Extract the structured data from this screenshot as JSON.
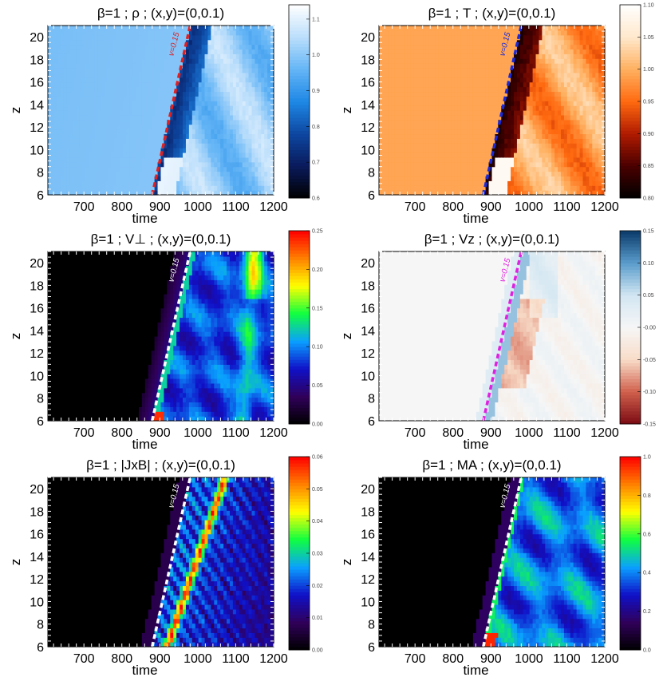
{
  "colormaps": {
    "blues": [
      "#000000",
      "#0a1a5c",
      "#0d47a1",
      "#1e88e5",
      "#64b5f6",
      "#bbdefb",
      "#ffffff"
    ],
    "heat": [
      "#000000",
      "#4a0000",
      "#b01a00",
      "#ff6a10",
      "#ffb060",
      "#ffe8cc",
      "#ffffff"
    ],
    "rainbow": [
      "#000000",
      "#30005a",
      "#1010c8",
      "#0aa0ff",
      "#10ff40",
      "#ffff00",
      "#ff8000",
      "#ff0000"
    ],
    "diverging": [
      "#7a0a12",
      "#d0604c",
      "#f8dcc8",
      "#f6f6f6",
      "#d2e6f2",
      "#5a9ccc",
      "#0a3a6a"
    ]
  },
  "chart_data": [
    {
      "type": "heatmap",
      "title": "β=1 ; ρ ; (x,y)=(0,0.1)",
      "xlabel": "time",
      "ylabel": "z",
      "xlim": [
        605,
        1200
      ],
      "ylim": [
        6,
        21
      ],
      "xticks": [
        "700",
        "800",
        "900",
        "1000",
        "1100",
        "1200"
      ],
      "yticks": [
        "6",
        "8",
        "10",
        "12",
        "14",
        "16",
        "18",
        "20"
      ],
      "colormap": "blues",
      "colorbar": {
        "min": 0.6,
        "max": 1.14,
        "labels": [
          "1.1",
          "1.0",
          "0.9",
          "0.8",
          "0.7",
          "0.6"
        ]
      },
      "line_label": "v=0.15",
      "line_color": "#e02020",
      "front": {
        "t0": 880,
        "v": 0.15
      },
      "field": "rho"
    },
    {
      "type": "heatmap",
      "title": "β=1 ; T ; (x,y)=(0,0.1)",
      "xlabel": "time",
      "ylabel": "z",
      "xlim": [
        605,
        1200
      ],
      "ylim": [
        6,
        21
      ],
      "xticks": [
        "700",
        "800",
        "900",
        "1000",
        "1100",
        "1200"
      ],
      "yticks": [
        "6",
        "8",
        "10",
        "12",
        "14",
        "16",
        "18",
        "20"
      ],
      "colormap": "heat",
      "colorbar": {
        "min": 0.8,
        "max": 1.1,
        "labels": [
          "1.10",
          "1.05",
          "1.00",
          "0.95",
          "0.90",
          "0.85",
          "0.80"
        ]
      },
      "line_label": "v=0.15",
      "line_color": "#1a2ad8",
      "front": {
        "t0": 880,
        "v": 0.15
      },
      "field": "T"
    },
    {
      "type": "heatmap",
      "title": "β=1 ; V⊥ ; (x,y)=(0,0.1)",
      "xlabel": "time",
      "ylabel": "z",
      "xlim": [
        605,
        1200
      ],
      "ylim": [
        6,
        21
      ],
      "xticks": [
        "700",
        "800",
        "900",
        "1000",
        "1100",
        "1200"
      ],
      "yticks": [
        "6",
        "8",
        "10",
        "12",
        "14",
        "16",
        "18",
        "20"
      ],
      "colormap": "rainbow",
      "colorbar": {
        "min": 0.0,
        "max": 0.25,
        "labels": [
          "0.25",
          "0.20",
          "0.15",
          "0.10",
          "0.05",
          "0.00"
        ]
      },
      "line_label": "v=0.15",
      "line_color": "#ffffff",
      "front": {
        "t0": 880,
        "v": 0.15
      },
      "field": "vperp"
    },
    {
      "type": "heatmap",
      "title": "β=1 ; Vz ; (x,y)=(0,0.1)",
      "xlabel": "time",
      "ylabel": "z",
      "xlim": [
        605,
        1200
      ],
      "ylim": [
        6,
        21
      ],
      "xticks": [
        "700",
        "800",
        "900",
        "1000",
        "1100",
        "1200"
      ],
      "yticks": [
        "6",
        "8",
        "10",
        "12",
        "14",
        "16",
        "18",
        "20"
      ],
      "colormap": "diverging",
      "colorbar": {
        "min": -0.15,
        "max": 0.15,
        "labels": [
          "0.15",
          "0.10",
          "0.05",
          "-0.00",
          "-0.05",
          "-0.10",
          "-0.15"
        ]
      },
      "line_label": "v=0.15",
      "line_color": "#e020e0",
      "front": {
        "t0": 880,
        "v": 0.15
      },
      "field": "vz"
    },
    {
      "type": "heatmap",
      "title": "β=1 ; |JxB| ; (x,y)=(0,0.1)",
      "xlabel": "time",
      "ylabel": "z",
      "xlim": [
        605,
        1200
      ],
      "ylim": [
        6,
        21
      ],
      "xticks": [
        "700",
        "800",
        "900",
        "1000",
        "1100",
        "1200"
      ],
      "yticks": [
        "6",
        "8",
        "10",
        "12",
        "14",
        "16",
        "18",
        "20"
      ],
      "colormap": "rainbow",
      "colorbar": {
        "min": 0.0,
        "max": 0.06,
        "labels": [
          "0.06",
          "0.05",
          "0.04",
          "0.03",
          "0.02",
          "0.01",
          "0.00"
        ]
      },
      "line_label": "v=0.15",
      "line_color": "#ffffff",
      "front": {
        "t0": 880,
        "v": 0.15
      },
      "field": "jxb"
    },
    {
      "type": "heatmap",
      "title": "β=1 ; MA ; (x,y)=(0,0.1)",
      "xlabel": "time",
      "ylabel": "z",
      "xlim": [
        605,
        1200
      ],
      "ylim": [
        6,
        21
      ],
      "xticks": [
        "700",
        "800",
        "900",
        "1000",
        "1100",
        "1200"
      ],
      "yticks": [
        "6",
        "8",
        "10",
        "12",
        "14",
        "16",
        "18",
        "20"
      ],
      "colormap": "rainbow",
      "colorbar": {
        "min": 0.0,
        "max": 1.0,
        "labels": [
          "1.0",
          "0.8",
          "0.6",
          "0.4",
          "0.2",
          "0.0"
        ]
      },
      "line_label": "v=0.15",
      "line_color": "#ffffff",
      "front": {
        "t0": 880,
        "v": 0.15
      },
      "field": "ma"
    }
  ]
}
